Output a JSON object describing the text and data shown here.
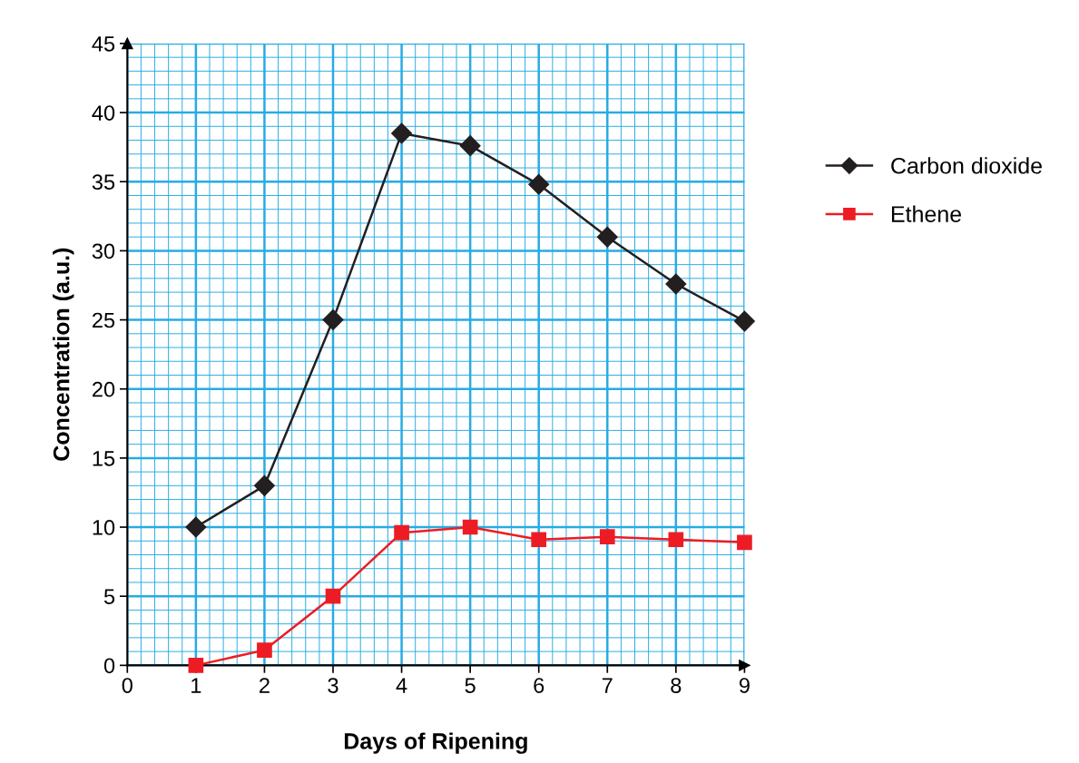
{
  "chart_data": {
    "type": "line",
    "xlabel": "Days of Ripening",
    "ylabel": "Concentration (a.u.)",
    "x": [
      1,
      2,
      3,
      4,
      5,
      6,
      7,
      8,
      9
    ],
    "series": [
      {
        "name": "Carbon dioxide",
        "color": "#231f20",
        "marker": "diamond",
        "values": [
          10,
          13,
          25,
          38.5,
          37.6,
          34.8,
          31,
          27.6,
          24.9
        ]
      },
      {
        "name": "Ethene",
        "color": "#ed1c24",
        "marker": "square",
        "values": [
          0,
          1.1,
          5,
          9.6,
          10,
          9.1,
          9.3,
          9.1,
          8.9
        ]
      }
    ],
    "xlim": [
      0,
      9
    ],
    "ylim": [
      0,
      45
    ],
    "xticks": [
      0,
      1,
      2,
      3,
      4,
      5,
      6,
      7,
      8,
      9,
      {
        "value": 0.2,
        "label": null
      },
      {
        "value": 0.4,
        "label": null
      },
      {
        "value": 0.6,
        "label": null
      },
      {
        "value": 0.8,
        "label": null
      },
      {
        "value": 1.2,
        "label": null
      },
      {
        "value": 1.4,
        "label": null
      },
      {
        "value": 1.6,
        "label": null
      },
      {
        "value": 1.8,
        "label": null
      },
      {
        "value": 2.2,
        "label": null
      },
      {
        "value": 2.4,
        "label": null
      },
      {
        "value": 2.6,
        "label": null
      },
      {
        "value": 2.8,
        "label": null
      },
      {
        "value": 3.2,
        "label": null
      },
      {
        "value": 3.4,
        "label": null
      },
      {
        "value": 3.6,
        "label": null
      },
      {
        "value": 3.8,
        "label": null
      },
      {
        "value": 4.2,
        "label": null
      },
      {
        "value": 4.4,
        "label": null
      },
      {
        "value": 4.6,
        "label": null
      },
      {
        "value": 4.8,
        "label": null
      },
      {
        "value": 5.2,
        "label": null
      },
      {
        "value": 5.4,
        "label": null
      },
      {
        "value": 5.6,
        "label": null
      },
      {
        "value": 5.8,
        "label": null
      },
      {
        "value": 6.2,
        "label": null
      },
      {
        "value": 6.4,
        "label": null
      },
      {
        "value": 6.6,
        "label": null
      },
      {
        "value": 6.8,
        "label": null
      },
      {
        "value": 7.2,
        "label": null
      },
      {
        "value": 7.4,
        "label": null
      },
      {
        "value": 7.6,
        "label": null
      },
      {
        "value": 7.8,
        "label": null
      },
      {
        "value": 8.2,
        "label": null
      },
      {
        "value": 8.4,
        "label": null
      },
      {
        "value": 8.6,
        "label": null
      },
      {
        "value": 8.8,
        "label": null
      }
    ],
    "yticks": [
      0,
      5,
      10,
      15,
      20,
      25,
      30,
      35,
      40,
      45,
      {
        "value": 1,
        "label": null
      },
      {
        "value": 2,
        "label": null
      },
      {
        "value": 3,
        "label": null
      },
      {
        "value": 4,
        "label": null
      },
      {
        "value": 6,
        "label": null
      },
      {
        "value": 7,
        "label": null
      },
      {
        "value": 8,
        "label": null
      },
      {
        "value": 9,
        "label": null
      },
      {
        "value": 11,
        "label": null
      },
      {
        "value": 12,
        "label": null
      },
      {
        "value": 13,
        "label": null
      },
      {
        "value": 14,
        "label": null
      },
      {
        "value": 16,
        "label": null
      },
      {
        "value": 17,
        "label": null
      },
      {
        "value": 18,
        "label": null
      },
      {
        "value": 19,
        "label": null
      },
      {
        "value": 21,
        "label": null
      },
      {
        "value": 22,
        "label": null
      },
      {
        "value": 23,
        "label": null
      },
      {
        "value": 24,
        "label": null
      },
      {
        "value": 26,
        "label": null
      },
      {
        "value": 27,
        "label": null
      },
      {
        "value": 28,
        "label": null
      },
      {
        "value": 29,
        "label": null
      },
      {
        "value": 31,
        "label": null
      },
      {
        "value": 32,
        "label": null
      },
      {
        "value": 33,
        "label": null
      },
      {
        "value": 34,
        "label": null
      },
      {
        "value": 36,
        "label": null
      },
      {
        "value": 37,
        "label": null
      },
      {
        "value": 38,
        "label": null
      },
      {
        "value": 39,
        "label": null
      },
      {
        "value": 41,
        "label": null
      },
      {
        "value": 42,
        "label": null
      },
      {
        "value": 43,
        "label": null
      },
      {
        "value": 44,
        "label": null
      }
    ],
    "grid": true,
    "legend": "right",
    "line_style": "solid"
  }
}
